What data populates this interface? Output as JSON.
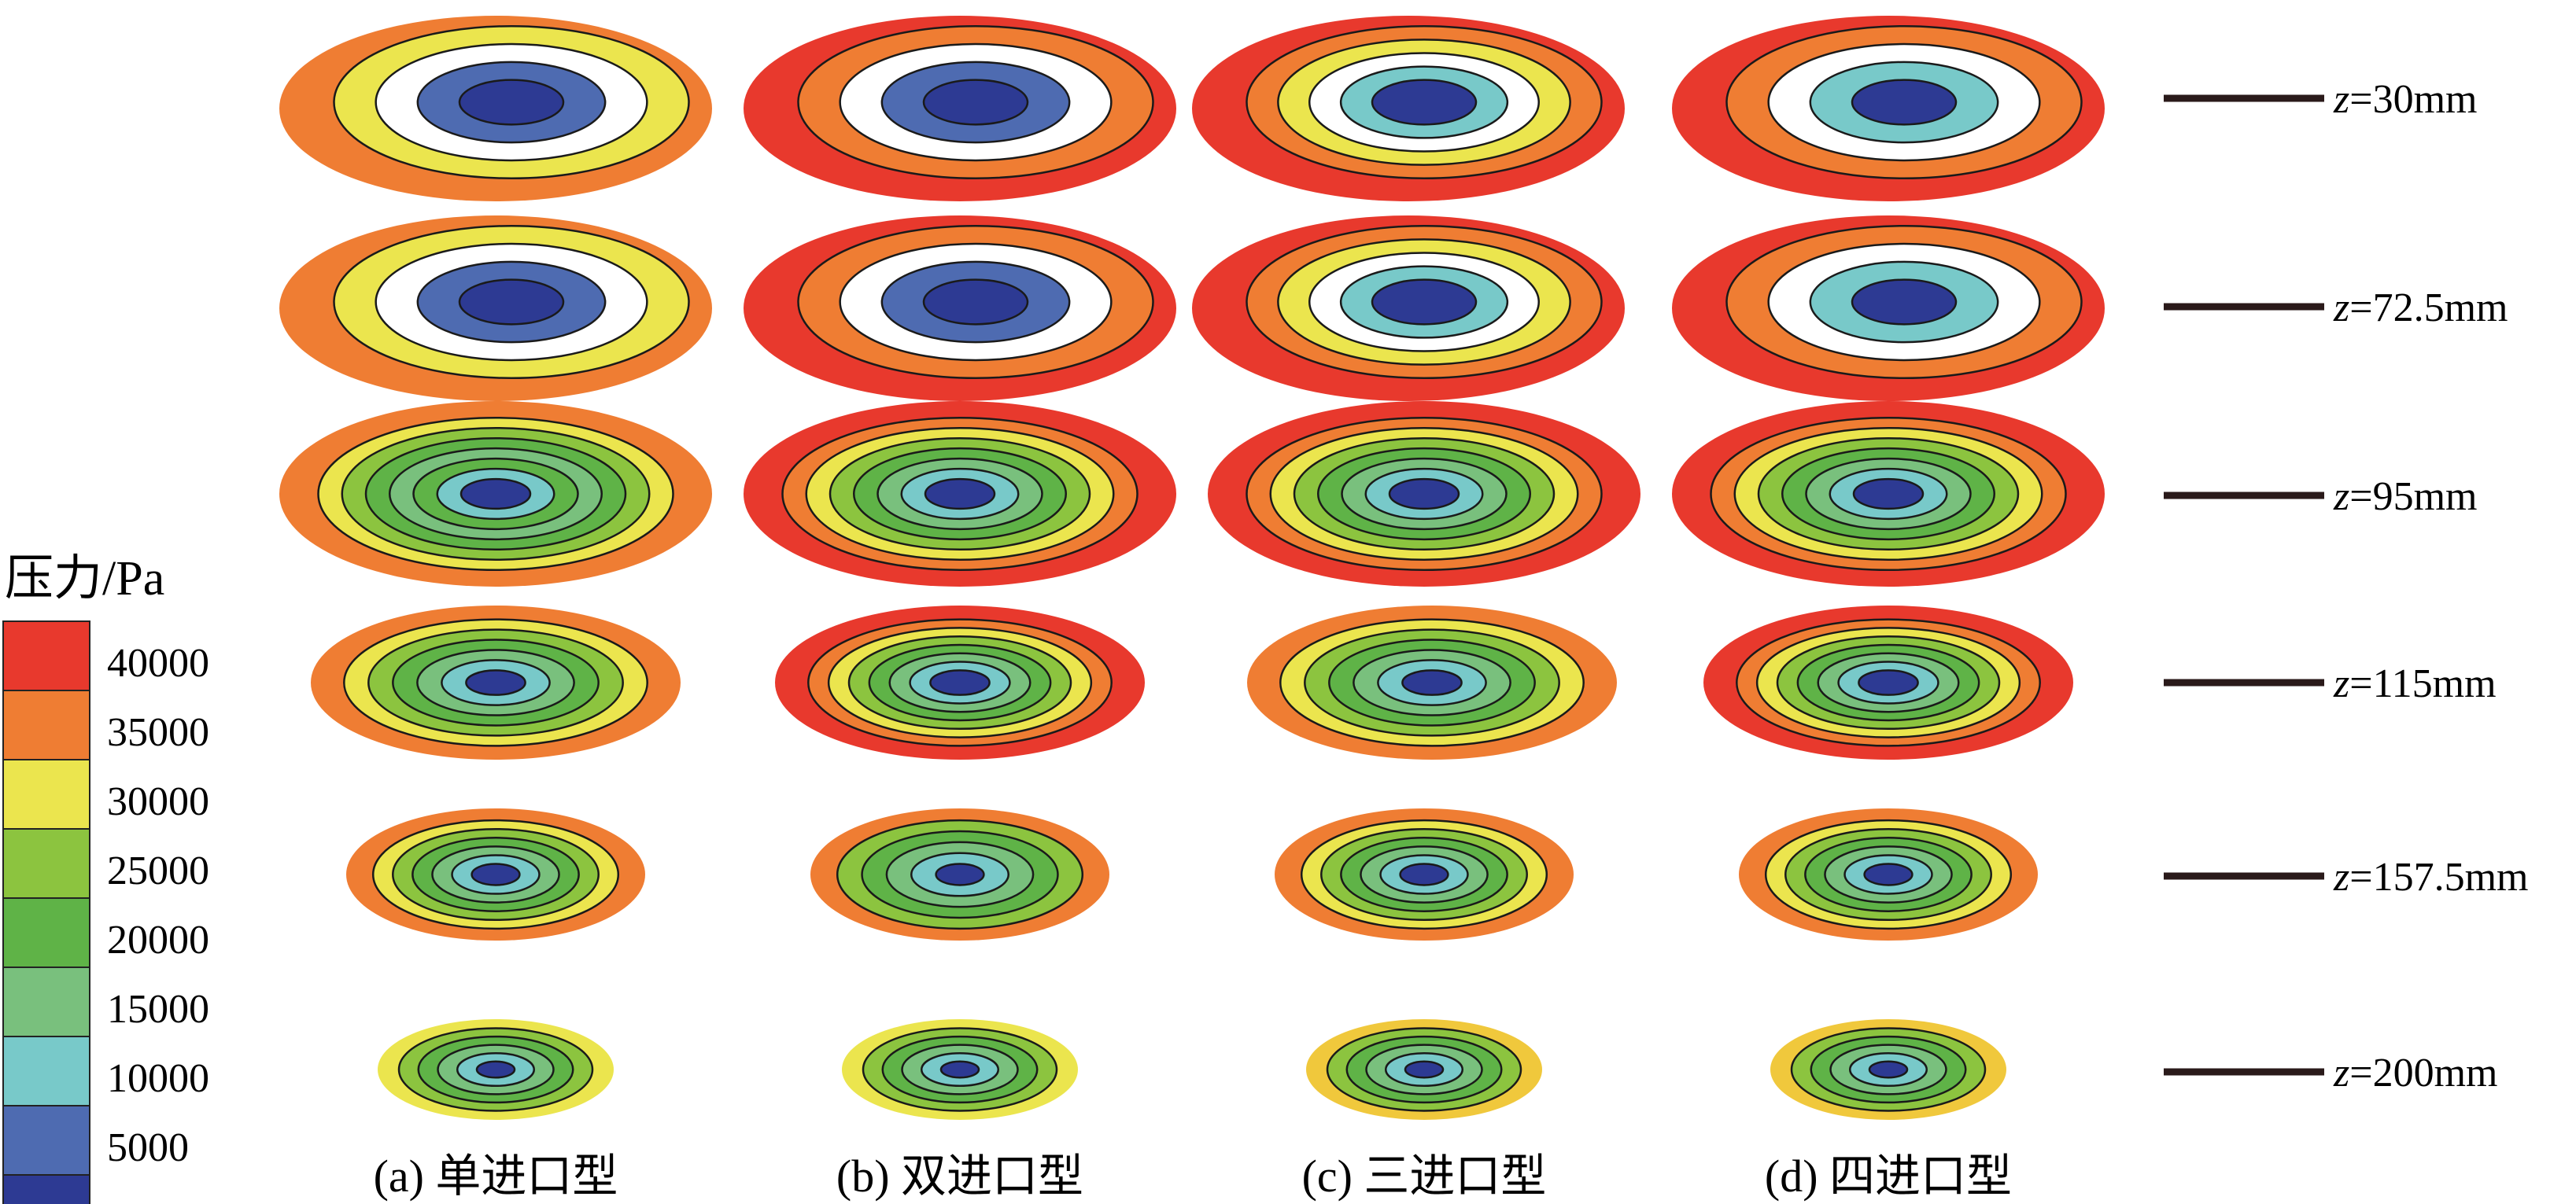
{
  "legend": {
    "title": "压力/Pa",
    "ticks": [
      "40000",
      "35000",
      "30000",
      "25000",
      "20000",
      "15000",
      "10000",
      "5000"
    ],
    "bands": [
      {
        "color": "#e8392d"
      },
      {
        "color": "#ef7d33"
      },
      {
        "color": "#ebe54e"
      },
      {
        "color": "#8cc43f"
      },
      {
        "color": "#5fb347"
      },
      {
        "color": "#79c07d"
      },
      {
        "color": "#78c9c9"
      },
      {
        "color": "#4e6bb1"
      },
      {
        "color": "#2d3a93"
      }
    ]
  },
  "levels": [
    {
      "z_prefix": "z",
      "value": "=30mm"
    },
    {
      "z_prefix": "z",
      "value": "=72.5mm"
    },
    {
      "z_prefix": "z",
      "value": "=95mm"
    },
    {
      "z_prefix": "z",
      "value": "=115mm"
    },
    {
      "z_prefix": "z",
      "value": "=157.5mm"
    },
    {
      "z_prefix": "z",
      "value": "=200mm"
    }
  ],
  "columns": [
    {
      "caption": "(a) 单进口型"
    },
    {
      "caption": "(b) 双进口型"
    },
    {
      "caption": "(c) 三进口型"
    },
    {
      "caption": "(d) 四进口型"
    }
  ],
  "contour_colors": {
    "white": "#ffffff",
    "red": "#e8392d",
    "orange": "#ef7d33",
    "yellow": "#ebe54e",
    "gold": "#f0c83c",
    "lightgreen": "#8cc43f",
    "green": "#5fb347",
    "medgreen": "#79c07d",
    "cyan": "#78c9c9",
    "blue": "#4e6bb1",
    "navy": "#2d3a93",
    "line": "#1a1a1a"
  },
  "slices": [
    [
      "orange",
      "yellow",
      "white",
      "blue",
      "navy"
    ],
    [
      "red",
      "orange",
      "white",
      "blue",
      "navy"
    ],
    [
      "red",
      "orange",
      "yellow",
      "white",
      "cyan",
      "navy"
    ],
    [
      "red",
      "orange",
      "white",
      "cyan",
      "navy"
    ],
    [
      "orange",
      "yellow",
      "white",
      "blue",
      "navy"
    ],
    [
      "red",
      "orange",
      "white",
      "blue",
      "navy"
    ],
    [
      "red",
      "orange",
      "yellow",
      "white",
      "cyan",
      "navy"
    ],
    [
      "red",
      "orange",
      "white",
      "cyan",
      "navy"
    ],
    [
      "orange",
      "yellow",
      "lightgreen",
      "green",
      "medgreen",
      "green",
      "cyan",
      "navy"
    ],
    [
      "red",
      "orange",
      "yellow",
      "lightgreen",
      "green",
      "medgreen",
      "cyan",
      "navy"
    ],
    [
      "red",
      "orange",
      "yellow",
      "lightgreen",
      "green",
      "medgreen",
      "cyan",
      "navy"
    ],
    [
      "red",
      "orange",
      "yellow",
      "lightgreen",
      "green",
      "medgreen",
      "cyan",
      "navy"
    ],
    [
      "orange",
      "yellow",
      "lightgreen",
      "green",
      "medgreen",
      "cyan",
      "navy"
    ],
    [
      "red",
      "orange",
      "yellow",
      "lightgreen",
      "green",
      "medgreen",
      "cyan",
      "navy"
    ],
    [
      "orange",
      "yellow",
      "lightgreen",
      "green",
      "medgreen",
      "cyan",
      "navy"
    ],
    [
      "red",
      "orange",
      "yellow",
      "lightgreen",
      "green",
      "medgreen",
      "cyan",
      "navy"
    ],
    [
      "orange",
      "yellow",
      "lightgreen",
      "green",
      "medgreen",
      "cyan",
      "navy"
    ],
    [
      "orange",
      "lightgreen",
      "green",
      "medgreen",
      "cyan",
      "navy"
    ],
    [
      "orange",
      "yellow",
      "lightgreen",
      "green",
      "medgreen",
      "cyan",
      "navy"
    ],
    [
      "orange",
      "yellow",
      "lightgreen",
      "green",
      "medgreen",
      "cyan",
      "navy"
    ],
    [
      "yellow",
      "lightgreen",
      "green",
      "medgreen",
      "cyan",
      "navy"
    ],
    [
      "yellow",
      "lightgreen",
      "green",
      "medgreen",
      "cyan",
      "navy"
    ],
    [
      "gold",
      "lightgreen",
      "green",
      "medgreen",
      "cyan",
      "navy"
    ],
    [
      "gold",
      "lightgreen",
      "green",
      "medgreen",
      "cyan",
      "navy"
    ]
  ]
}
